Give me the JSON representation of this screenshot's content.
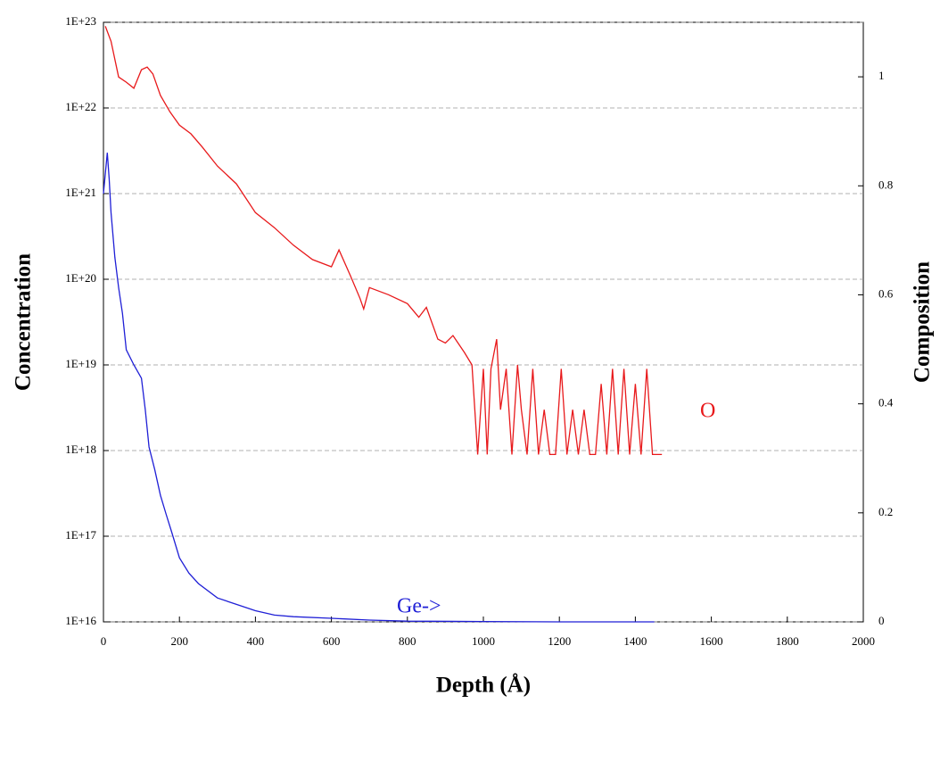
{
  "chart_data": {
    "type": "line",
    "xlabel": "Depth (Å)",
    "ylabel": "Concentration",
    "y2label": "Composition",
    "xlim": [
      0,
      2000
    ],
    "xticks": [
      0,
      200,
      400,
      600,
      800,
      1000,
      1200,
      1400,
      1600,
      1800,
      2000
    ],
    "ylim": [
      1e+16,
      1e+23
    ],
    "ylog": true,
    "yticks": [
      {
        "value": 1e+16,
        "label": "1E+16"
      },
      {
        "value": 1e+17,
        "label": "1E+17"
      },
      {
        "value": 1e+18,
        "label": "1E+18"
      },
      {
        "value": 1e+19,
        "label": "1E+19"
      },
      {
        "value": 1e+20,
        "label": "1E+20"
      },
      {
        "value": 1e+21,
        "label": "1E+21"
      },
      {
        "value": 1e+22,
        "label": "1E+22"
      },
      {
        "value": 1e+23,
        "label": "1E+23"
      }
    ],
    "y2lim": [
      0,
      1.1
    ],
    "y2ticks": [
      0,
      0.2,
      0.4,
      0.6,
      0.8,
      1
    ],
    "grid": true,
    "series": [
      {
        "name": "O",
        "color": "#e8191b",
        "x": [
          5,
          20,
          40,
          60,
          80,
          100,
          115,
          130,
          150,
          175,
          200,
          230,
          260,
          300,
          350,
          400,
          450,
          500,
          550,
          600,
          620,
          650,
          675,
          685,
          700,
          750,
          800,
          830,
          850,
          880,
          900,
          920,
          950,
          970,
          985,
          1000,
          1010,
          1020,
          1035,
          1045,
          1060,
          1075,
          1090,
          1100,
          1115,
          1130,
          1145,
          1160,
          1175,
          1190,
          1205,
          1220,
          1235,
          1250,
          1265,
          1280,
          1295,
          1310,
          1325,
          1340,
          1355,
          1370,
          1385,
          1400,
          1415,
          1430,
          1445,
          1460,
          1470
        ],
        "values": [
          9e+22,
          6e+22,
          2.3e+22,
          2e+22,
          1.7e+22,
          2.8e+22,
          3e+22,
          2.5e+22,
          1.4e+22,
          9e+21,
          6.3e+21,
          5e+21,
          3.5e+21,
          2.1e+21,
          1.3e+21,
          6e+20,
          4e+20,
          2.5e+20,
          1.7e+20,
          1.4e+20,
          2.2e+20,
          1.1e+20,
          6e+19,
          4.5e+19,
          8e+19,
          6.6e+19,
          5.2e+19,
          3.6e+19,
          4.7e+19,
          2e+19,
          1.8e+19,
          2.2e+19,
          1.4e+19,
          1e+19,
          9e+17,
          9e+18,
          9e+17,
          9e+18,
          2e+19,
          3e+18,
          9e+18,
          9e+17,
          1e+19,
          3e+18,
          9e+17,
          9e+18,
          9e+17,
          3e+18,
          9e+17,
          9e+17,
          9e+18,
          9e+17,
          3e+18,
          9e+17,
          3e+18,
          9e+17,
          9e+17,
          6e+18,
          9e+17,
          9e+18,
          9e+17,
          9e+18,
          9e+17,
          6e+18,
          9e+17,
          9e+18,
          9e+17,
          9e+17,
          9e+17
        ]
      },
      {
        "name": "Ge->",
        "color": "#1f1fd6",
        "x": [
          0,
          10,
          15,
          20,
          30,
          40,
          50,
          60,
          80,
          100,
          110,
          120,
          135,
          150,
          165,
          180,
          200,
          225,
          250,
          300,
          350,
          400,
          450,
          500,
          600,
          700,
          800,
          1000,
          1200,
          1450
        ],
        "values": [
          1e+21,
          3e+21,
          1.5e+21,
          6e+20,
          1.8e+20,
          8e+19,
          4e+19,
          1.5e+19,
          1e+19,
          7e+18,
          3e+18,
          1.1e+18,
          6e+17,
          3e+17,
          1.8e+17,
          1.1e+17,
          5.6e+16,
          3.7e+16,
          2.8e+16,
          1.9e+16,
          1.6e+16,
          1.35e+16,
          1.2e+16,
          1.15e+16,
          1.1e+16,
          1.05e+16,
          1.02e+16,
          1.01e+16,
          1e+16,
          1e+16
        ]
      }
    ]
  }
}
